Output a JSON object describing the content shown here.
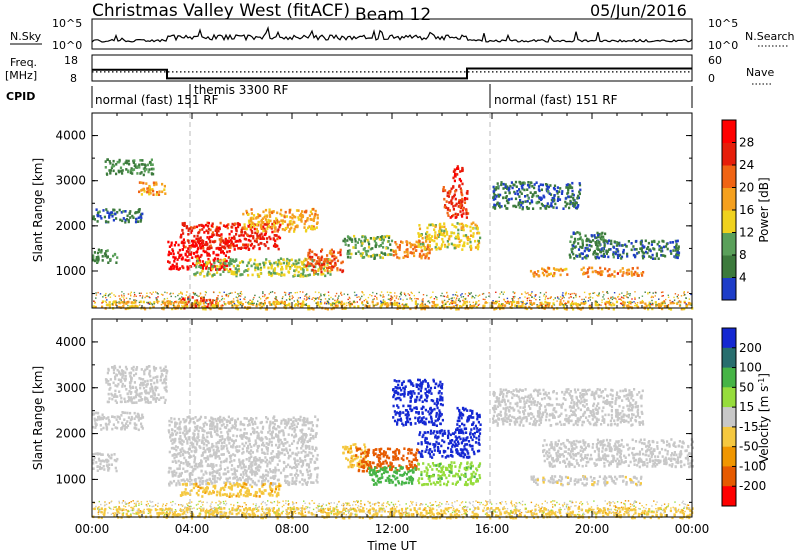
{
  "header": {
    "station": "Christmas Valley West (fitACF)",
    "beam": "Beam 12",
    "date": "05/Jun/2016"
  },
  "strips": {
    "nsky_label": "N.Sky",
    "nsearch_label": "N.Search",
    "nsky_ticks": [
      "10^5",
      "10^0"
    ],
    "nsearch_ticks": [
      "10^5",
      "10^0"
    ],
    "freq_label": "Freq.",
    "freq_unit": "[MHz]",
    "freq_ticks": [
      "18",
      "8"
    ],
    "nave_label": "Nave",
    "nave_ticks": [
      "60",
      "0"
    ],
    "cpid_label": "CPID",
    "cpid_segments": [
      {
        "label": "normal (fast) 151 RF",
        "start_hour": 0,
        "end_hour": 4
      },
      {
        "label": "themis 3300 RF",
        "start_hour": 4,
        "end_hour": 16
      },
      {
        "label": "normal (fast) 151 RF",
        "start_hour": 16,
        "end_hour": 24
      }
    ],
    "freq_steps": [
      {
        "from_hour": 0,
        "to_hour": 3.0,
        "mhz": 12.3
      },
      {
        "from_hour": 3.0,
        "to_hour": 15.0,
        "mhz": 9.0
      },
      {
        "from_hour": 15.0,
        "to_hour": 24,
        "mhz": 12.8
      }
    ],
    "nave_level": 21
  },
  "x_axis": {
    "label": "Time UT",
    "ticks": [
      "00:00",
      "04:00",
      "08:00",
      "12:00",
      "16:00",
      "20:00",
      "00:00"
    ],
    "range_hours": [
      0,
      24
    ]
  },
  "y_axis": {
    "label": "Slant Range [km]",
    "ticks": [
      "1000",
      "2000",
      "3000",
      "4000"
    ],
    "range_km": [
      180,
      4500
    ]
  },
  "colors": {
    "power_scale": [
      "#0000ff",
      "#1e3dc8",
      "#3c7a3c",
      "#5aa05a",
      "#f0d21e",
      "#f5a01e",
      "#f06414",
      "#e61e0a",
      "#ff0000"
    ],
    "velocity_scale": [
      "#ff0000",
      "#e65a00",
      "#f09600",
      "#f5c840",
      "#c8c8c8",
      "#96dc3c",
      "#46b446",
      "#286e6e",
      "#1428d2"
    ],
    "gray_scatter": "#c8c8c8"
  },
  "chart_data": [
    {
      "type": "heatmap",
      "title": "Power",
      "xlabel": "Time UT",
      "ylabel": "Slant Range [km]",
      "colorbar_label": "Power [dB]",
      "colorbar_ticks": [
        "4",
        "8",
        "12",
        "16",
        "20",
        "24",
        "28"
      ],
      "colorbar_range": [
        0,
        32
      ],
      "xlim_hours": [
        0,
        24
      ],
      "ylim_km": [
        180,
        4500
      ],
      "regions": [
        {
          "t0": 0.5,
          "t1": 2.5,
          "r0": 3150,
          "r1": 3500,
          "value": 10
        },
        {
          "t0": 1.8,
          "t1": 2.9,
          "r0": 2700,
          "r1": 3000,
          "value": 20
        },
        {
          "t0": 0.0,
          "t1": 2.0,
          "r0": 2100,
          "r1": 2400,
          "value": 8
        },
        {
          "t0": 0.0,
          "t1": 1.0,
          "r0": 1200,
          "r1": 1500,
          "value": 10
        },
        {
          "t0": 3.0,
          "t1": 5.5,
          "r0": 1050,
          "r1": 1700,
          "value": 30
        },
        {
          "t0": 3.5,
          "t1": 7.5,
          "r0": 1500,
          "r1": 2100,
          "value": 27
        },
        {
          "t0": 6.0,
          "t1": 9.0,
          "r0": 1900,
          "r1": 2400,
          "value": 19
        },
        {
          "t0": 4.0,
          "t1": 9.5,
          "r0": 900,
          "r1": 1300,
          "value": 14
        },
        {
          "t0": 8.5,
          "t1": 10.0,
          "r0": 1000,
          "r1": 1500,
          "value": 24
        },
        {
          "t0": 10.0,
          "t1": 12.0,
          "r0": 1300,
          "r1": 1800,
          "value": 12
        },
        {
          "t0": 12.0,
          "t1": 13.5,
          "r0": 1300,
          "r1": 1700,
          "value": 22
        },
        {
          "t0": 13.0,
          "t1": 15.5,
          "r0": 1500,
          "r1": 2100,
          "value": 16
        },
        {
          "t0": 14.0,
          "t1": 15.0,
          "r0": 2200,
          "r1": 2900,
          "value": 26
        },
        {
          "t0": 14.4,
          "t1": 14.8,
          "r0": 2900,
          "r1": 3400,
          "value": 29
        },
        {
          "t0": 16.0,
          "t1": 19.5,
          "r0": 2400,
          "r1": 3000,
          "value": 8
        },
        {
          "t0": 19.0,
          "t1": 20.5,
          "r0": 1300,
          "r1": 1900,
          "value": 9
        },
        {
          "t0": 17.5,
          "t1": 19.0,
          "r0": 900,
          "r1": 1100,
          "value": 20
        },
        {
          "t0": 19.5,
          "t1": 22.0,
          "r0": 900,
          "r1": 1100,
          "value": 22
        },
        {
          "t0": 20.0,
          "t1": 23.5,
          "r0": 1300,
          "r1": 1700,
          "value": 8
        },
        {
          "t0": 3.5,
          "t1": 5.0,
          "r0": 200,
          "r1": 450,
          "value": 26
        },
        {
          "t0": 0.0,
          "t1": 24.0,
          "r0": 180,
          "r1": 350,
          "value": 18
        }
      ]
    },
    {
      "type": "heatmap",
      "title": "Velocity",
      "xlabel": "Time UT",
      "ylabel": "Slant Range [km]",
      "colorbar_label": "Velocity [m s^-1]",
      "colorbar_ticks": [
        "200",
        "100",
        "50",
        "15",
        "-15",
        "-50",
        "-100",
        "-200"
      ],
      "colorbar_range": [
        -250,
        250
      ],
      "xlim_hours": [
        0,
        24
      ],
      "ylim_km": [
        180,
        4500
      ],
      "regions": [
        {
          "t0": 0.5,
          "t1": 3.0,
          "r0": 2700,
          "r1": 3500,
          "value": 0
        },
        {
          "t0": 0.0,
          "t1": 2.0,
          "r0": 2100,
          "r1": 2500,
          "value": 0
        },
        {
          "t0": 0.0,
          "t1": 1.0,
          "r0": 1200,
          "r1": 1600,
          "value": 0
        },
        {
          "t0": 3.0,
          "t1": 9.0,
          "r0": 900,
          "r1": 2400,
          "value": 0
        },
        {
          "t0": 3.5,
          "t1": 7.5,
          "r0": 650,
          "r1": 950,
          "value": -40
        },
        {
          "t0": 10.0,
          "t1": 11.0,
          "r0": 1300,
          "r1": 1800,
          "value": -40
        },
        {
          "t0": 10.5,
          "t1": 13.0,
          "r0": 1200,
          "r1": 1700,
          "value": -160
        },
        {
          "t0": 11.0,
          "t1": 13.0,
          "r0": 900,
          "r1": 1300,
          "value": 70
        },
        {
          "t0": 13.0,
          "t1": 15.5,
          "r0": 1500,
          "r1": 2100,
          "value": 220
        },
        {
          "t0": 13.0,
          "t1": 15.5,
          "r0": 900,
          "r1": 1400,
          "value": 40
        },
        {
          "t0": 12.0,
          "t1": 14.0,
          "r0": 2200,
          "r1": 3200,
          "value": 220
        },
        {
          "t0": 14.5,
          "t1": 15.5,
          "r0": 2100,
          "r1": 2600,
          "value": 220
        },
        {
          "t0": 16.0,
          "t1": 22.0,
          "r0": 2200,
          "r1": 3000,
          "value": 0
        },
        {
          "t0": 18.0,
          "t1": 24.0,
          "r0": 1300,
          "r1": 1900,
          "value": 0
        },
        {
          "t0": 17.5,
          "t1": 22.0,
          "r0": 900,
          "r1": 1100,
          "value": -5
        },
        {
          "t0": 0.0,
          "t1": 24.0,
          "r0": 180,
          "r1": 400,
          "value": -30
        }
      ]
    }
  ]
}
